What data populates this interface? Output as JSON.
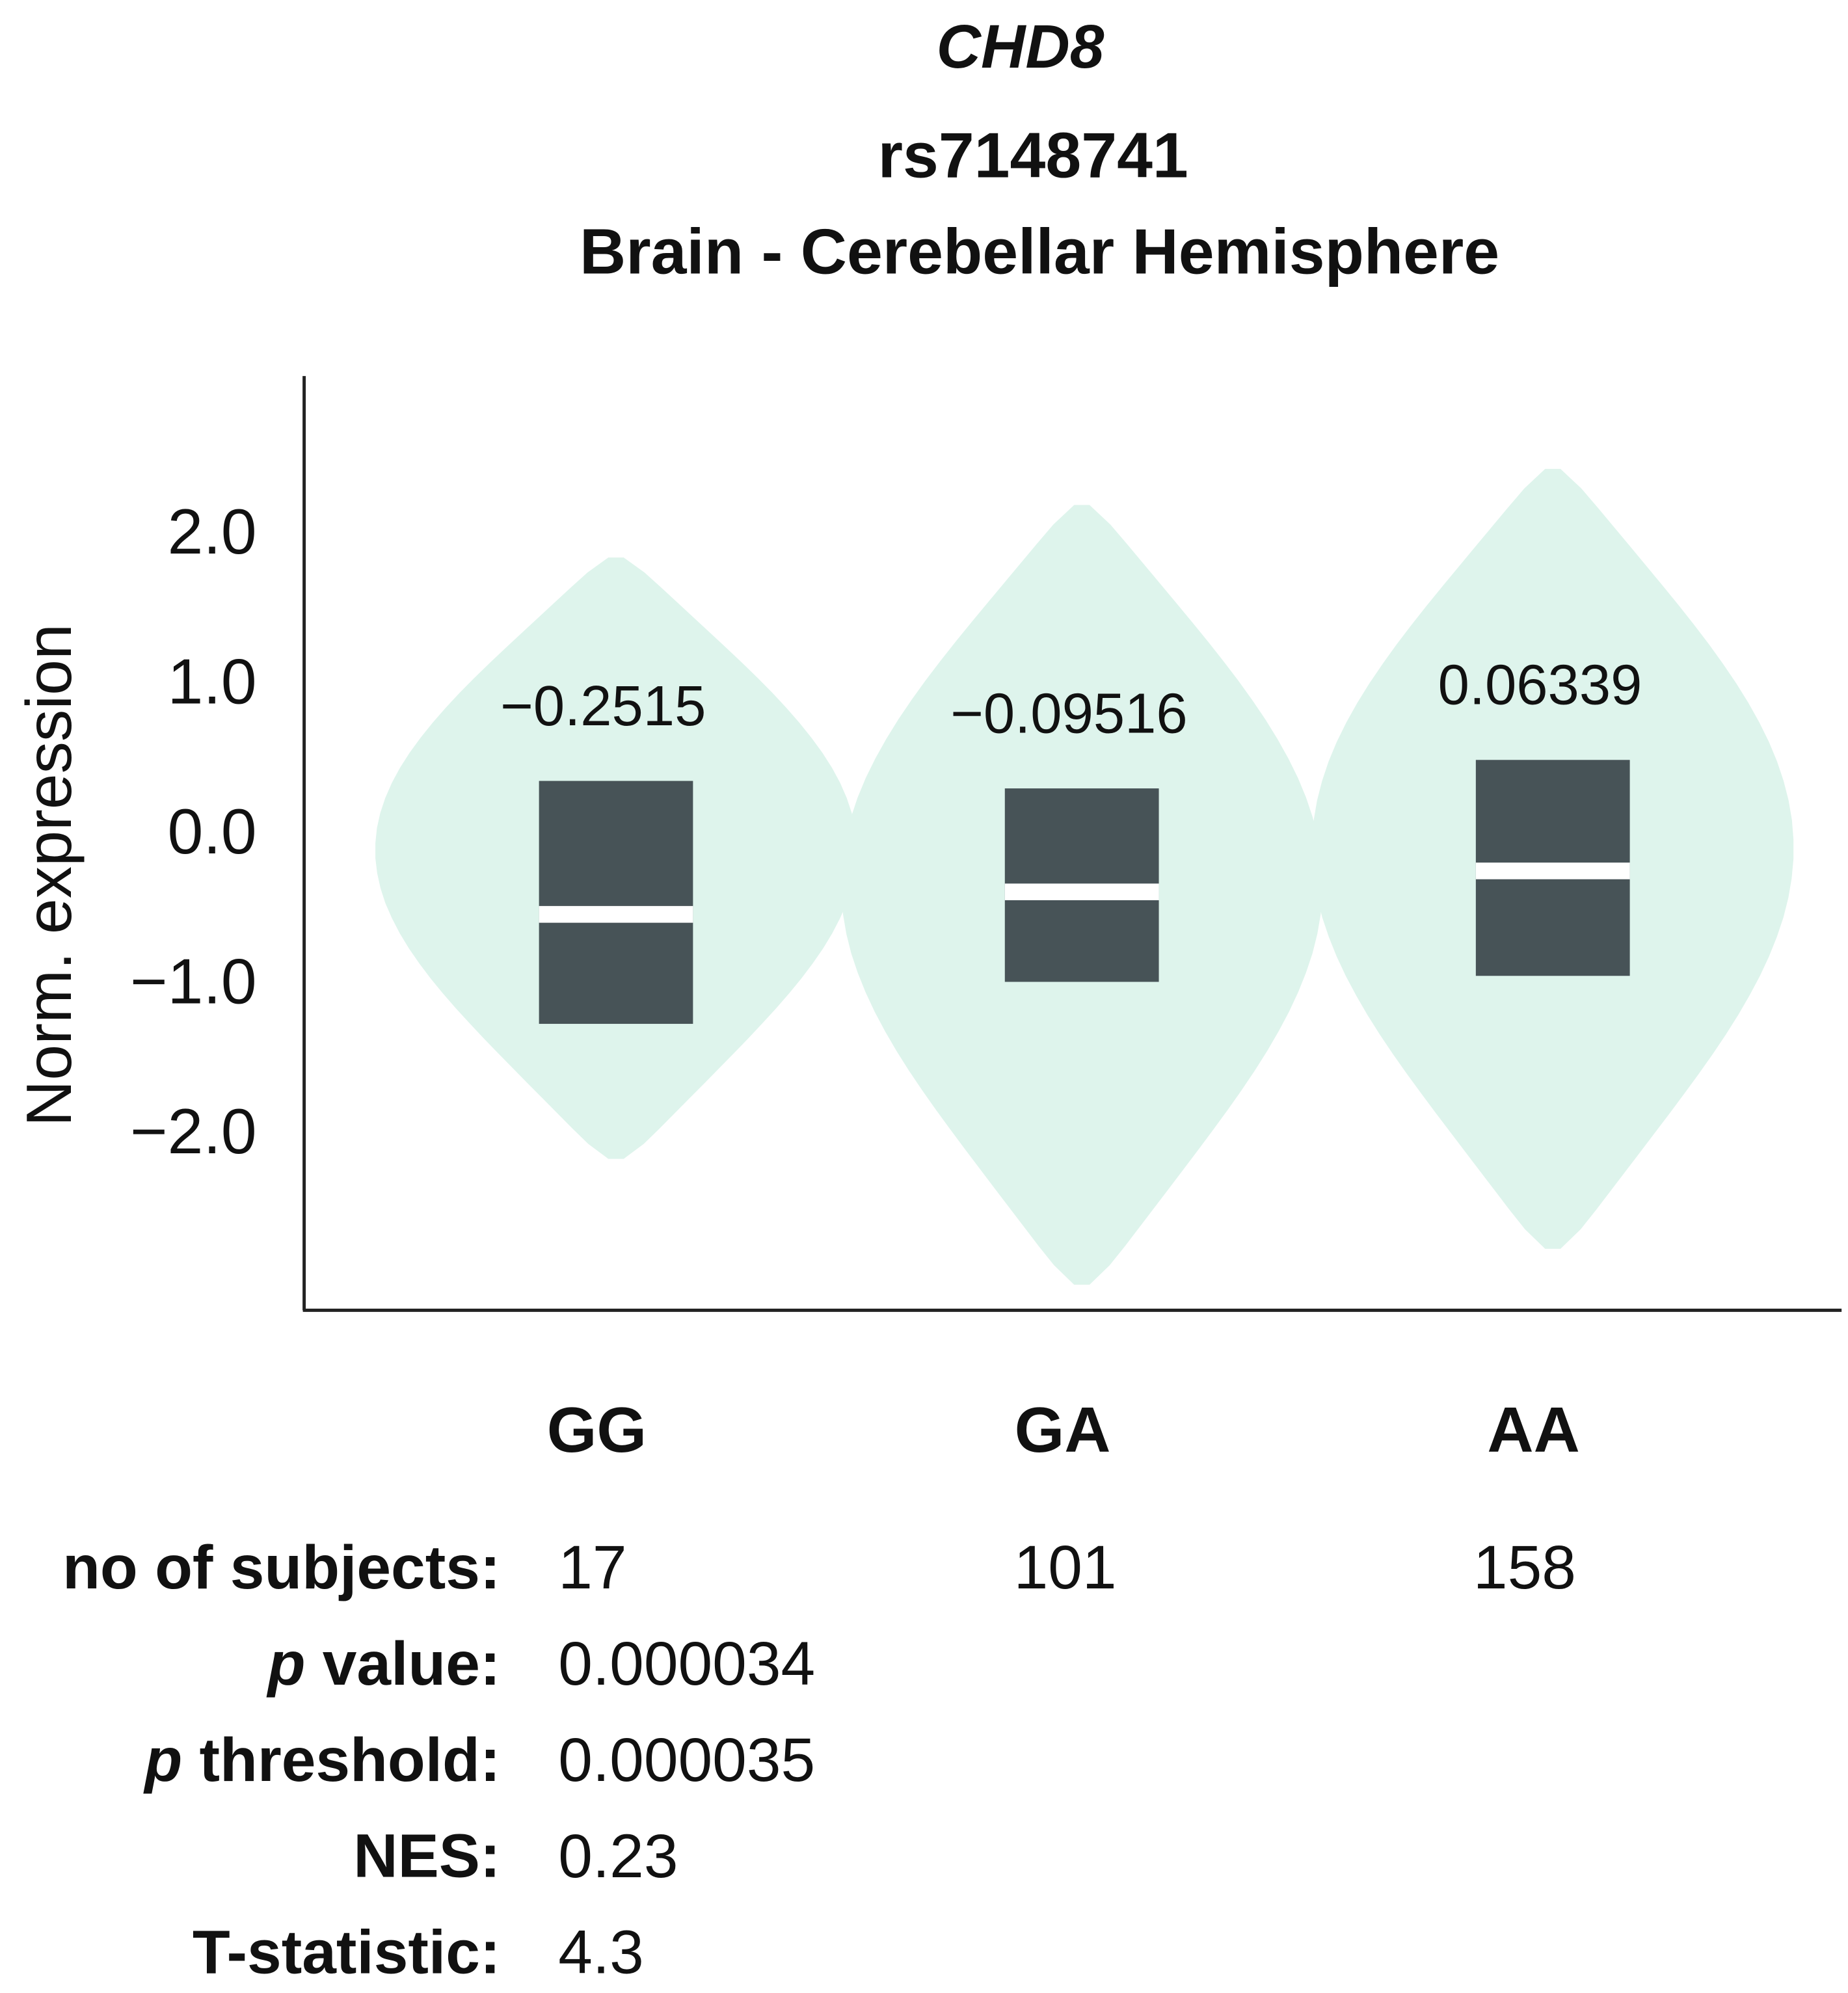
{
  "chart_data": {
    "type": "violin",
    "title": "CHD8",
    "subtitle": "rs7148741",
    "tissue": "Brain - Cerebellar Hemisphere",
    "ylabel": "Norm. expression",
    "categories": [
      "GG",
      "GA",
      "AA"
    ],
    "annotations": [
      "−0.2515",
      "−0.09516",
      "0.06339"
    ],
    "median": [
      -0.52,
      -0.37,
      -0.23
    ],
    "q1": [
      -1.25,
      -0.97,
      -0.93
    ],
    "q3": [
      0.37,
      0.32,
      0.51
    ],
    "min": [
      -2.15,
      -2.99,
      -2.75
    ],
    "max": [
      1.86,
      2.21,
      2.45
    ],
    "violin_color": "#def4ec",
    "box_color": "#475357",
    "median_color": "#ffffff",
    "ylim": [
      -3.16,
      3.07
    ],
    "yticks": [
      {
        "value": 2,
        "label": "2.0"
      },
      {
        "value": 1,
        "label": "1.0"
      },
      {
        "value": 0,
        "label": "0.0"
      },
      {
        "value": -1,
        "label": "−1.0"
      },
      {
        "value": -2,
        "label": "−2.0"
      }
    ]
  },
  "stats": {
    "rows": [
      {
        "label": "no of subjects:",
        "values": [
          17,
          101,
          158
        ]
      },
      {
        "label_italic": "p",
        "label": " value:",
        "values": [
          3.4e-05
        ]
      },
      {
        "label_italic": "p",
        "label": " threshold:",
        "values": [
          3.5e-05
        ]
      },
      {
        "label": "NES:",
        "values": [
          0.23
        ]
      },
      {
        "label": "T-statistic:",
        "values": [
          4.3
        ]
      }
    ]
  }
}
